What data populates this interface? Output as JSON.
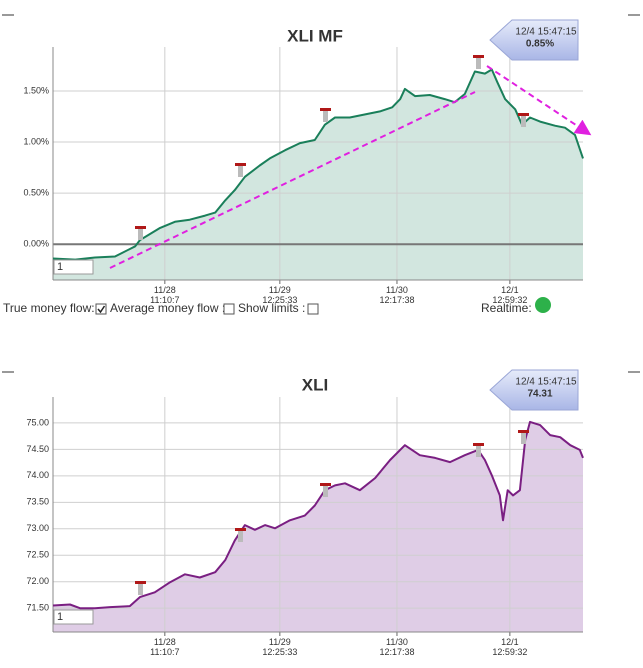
{
  "chart_data": [
    {
      "type": "area",
      "title": "XLI MF",
      "color": "#1a7f5a",
      "fill": "#d2e6df",
      "annotation": {
        "time": "12/4 15:47:15",
        "value": "0.85%"
      },
      "range_input": "1",
      "xlim": [
        0,
        100
      ],
      "xticks": [
        {
          "value": 21.1,
          "label": "11/28 11:10:7"
        },
        {
          "value": 42.8,
          "label": "11/29 12:25:33"
        },
        {
          "value": 64.9,
          "label": "11/30 12:17:38"
        },
        {
          "value": 86.2,
          "label": "12/1 12:59:32"
        }
      ],
      "ylim": [
        -0.35,
        1.93
      ],
      "yticks": [
        {
          "value": 0,
          "label": "0.00%"
        },
        {
          "value": 0.5,
          "label": "0.50%"
        },
        {
          "value": 1,
          "label": "1.00%"
        },
        {
          "value": 1.5,
          "label": "1.50%"
        }
      ],
      "zero_line": true,
      "grid": true,
      "x": [
        0,
        4.2,
        7.9,
        11.7,
        15.5,
        16.4,
        20.2,
        23.0,
        25.8,
        28.7,
        30.6,
        32.5,
        34.3,
        36.2,
        39.0,
        40.9,
        43.8,
        46.6,
        49.4,
        51.3,
        53.2,
        56.0,
        58.9,
        61.7,
        64.0,
        65.5,
        66.4,
        68.3,
        71.1,
        73.9,
        75.8,
        77.7,
        79.6,
        81.5,
        82.8,
        83.8,
        85.3,
        87.2,
        88.5,
        90.0,
        91.9,
        94.7,
        96.6,
        98.5,
        100
      ],
      "values": [
        -0.14,
        -0.15,
        -0.13,
        -0.12,
        -0.02,
        0.04,
        0.16,
        0.22,
        0.24,
        0.28,
        0.31,
        0.43,
        0.53,
        0.66,
        0.77,
        0.84,
        0.92,
        0.99,
        1.02,
        1.17,
        1.24,
        1.24,
        1.27,
        1.3,
        1.34,
        1.42,
        1.52,
        1.45,
        1.46,
        1.42,
        1.39,
        1.47,
        1.69,
        1.67,
        1.71,
        1.59,
        1.42,
        1.32,
        1.17,
        1.24,
        1.2,
        1.16,
        1.14,
        1.07,
        0.84
      ]
    },
    {
      "type": "area",
      "title": "XLI",
      "color": "#7a1f82",
      "fill": "#dfcde6",
      "annotation": {
        "time": "12/4 15:47:15",
        "value": "74.31"
      },
      "range_input": "1",
      "xlim": [
        0,
        100
      ],
      "xticks": [
        {
          "value": 21.1,
          "label": "11/28 11:10:7"
        },
        {
          "value": 42.8,
          "label": "11/29 12:25:33"
        },
        {
          "value": 64.9,
          "label": "11/30 12:17:38"
        },
        {
          "value": 86.2,
          "label": "12/1 12:59:32"
        }
      ],
      "ylim": [
        71.05,
        75.49
      ],
      "yticks": [
        {
          "value": 71.5,
          "label": "71.50"
        },
        {
          "value": 72,
          "label": "72.00"
        },
        {
          "value": 72.5,
          "label": "72.50"
        },
        {
          "value": 73,
          "label": "73.00"
        },
        {
          "value": 73.5,
          "label": "73.50"
        },
        {
          "value": 74,
          "label": "74.00"
        },
        {
          "value": 74.5,
          "label": "74.50"
        },
        {
          "value": 75,
          "label": "75.00"
        }
      ],
      "zero_line": false,
      "grid": true,
      "x": [
        0,
        3.2,
        5.1,
        7.9,
        10.8,
        14.5,
        16.4,
        19.2,
        22.1,
        24.9,
        27.7,
        30.6,
        32.5,
        34.3,
        36.2,
        38.1,
        40.0,
        41.9,
        44.7,
        47.5,
        49.4,
        51.3,
        53.2,
        55.1,
        57.9,
        60.8,
        63.6,
        66.4,
        69.2,
        72.1,
        74.9,
        77.7,
        80.2,
        81.5,
        82.8,
        84.3,
        84.9,
        85.8,
        86.8,
        88.1,
        89.1,
        90.0,
        91.9,
        93.8,
        95.7,
        97.6,
        99.4,
        100
      ],
      "values": [
        71.55,
        71.57,
        71.5,
        71.5,
        71.52,
        71.54,
        71.71,
        71.8,
        71.99,
        72.14,
        72.08,
        72.18,
        72.41,
        72.78,
        73.07,
        72.98,
        73.07,
        73.01,
        73.16,
        73.25,
        73.44,
        73.73,
        73.82,
        73.86,
        73.73,
        73.96,
        74.3,
        74.58,
        74.39,
        74.34,
        74.26,
        74.39,
        74.49,
        74.3,
        74.01,
        73.63,
        73.16,
        73.73,
        73.63,
        73.73,
        74.68,
        75.02,
        74.96,
        74.77,
        74.73,
        74.58,
        74.49,
        74.34
      ]
    }
  ],
  "controls": {
    "true_money_flow": "True money flow:",
    "average_money_flow": "Average money flow :",
    "show_limits": "Show limits :",
    "realtime": "Realtime:"
  }
}
